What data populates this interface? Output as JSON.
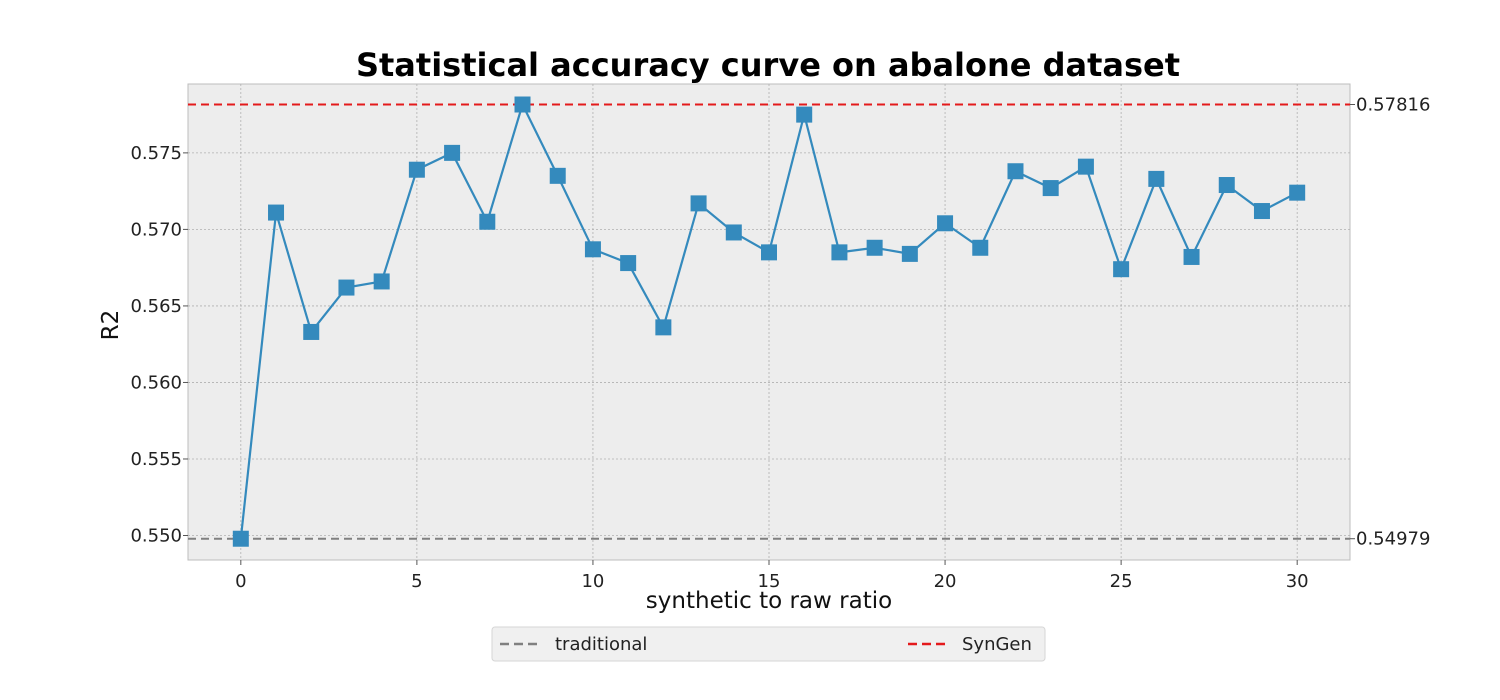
{
  "chart_data": {
    "type": "line",
    "title": "Statistical accuracy curve on abalone dataset",
    "xlabel": "synthetic to raw ratio",
    "ylabel": "R2",
    "xlim": [
      -1.5,
      31.5
    ],
    "ylim": [
      0.5484,
      0.5795
    ],
    "xticks": [
      "0",
      "5",
      "10",
      "15",
      "20",
      "25",
      "30"
    ],
    "yticks": [
      "0.550",
      "0.555",
      "0.560",
      "0.565",
      "0.570",
      "0.575"
    ],
    "grid": true,
    "legend_position": "bottom-center",
    "series": [
      {
        "marker": "square",
        "color": "#348ABD",
        "x": [
          0,
          1,
          2,
          3,
          4,
          5,
          6,
          7,
          8,
          9,
          10,
          11,
          12,
          13,
          14,
          15,
          16,
          17,
          18,
          19,
          20,
          21,
          22,
          23,
          24,
          25,
          26,
          27,
          28,
          29,
          30
        ],
        "y": [
          0.54979,
          0.5711,
          0.5633,
          0.5662,
          0.5666,
          0.5739,
          0.575,
          0.5705,
          0.57816,
          0.5735,
          0.5687,
          0.5678,
          0.5636,
          0.5717,
          0.5698,
          0.5685,
          0.5775,
          0.5685,
          0.5688,
          0.5684,
          0.5704,
          0.5688,
          0.5738,
          0.5727,
          0.5741,
          0.5674,
          0.5733,
          0.5682,
          0.5729,
          0.5712,
          0.5724
        ]
      }
    ],
    "reference_lines": [
      {
        "name": "traditional",
        "value": 0.54979,
        "label": "0.54979",
        "color": "#808080",
        "style": "dashed"
      },
      {
        "name": "SynGen",
        "value": 0.57816,
        "label": "0.57816",
        "color": "#E41A1C",
        "style": "dashed"
      }
    ],
    "legend": [
      "traditional",
      "SynGen"
    ],
    "background": "#EDEDED"
  }
}
